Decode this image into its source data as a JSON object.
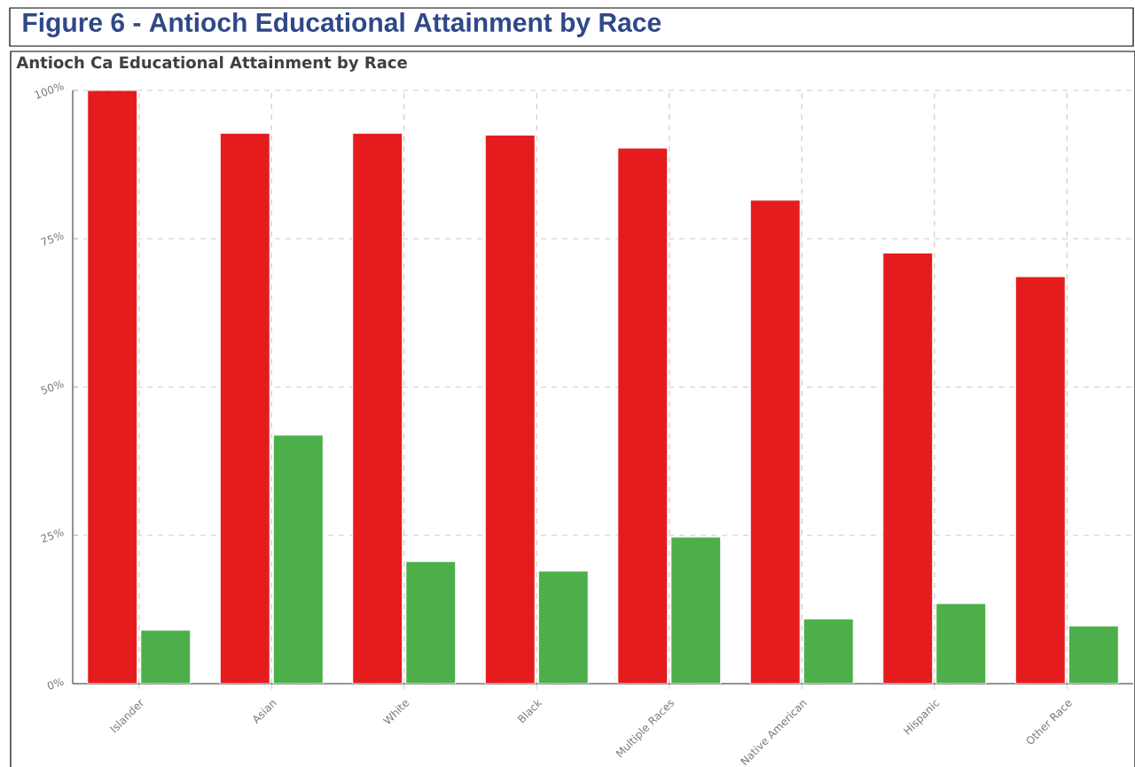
{
  "chart_data": {
    "type": "bar",
    "title": "Figure 6 - Antioch Educational Attainment by Race",
    "subtitle": "Antioch Ca Educational Attainment by Race",
    "categories": [
      "Islander",
      "Asian",
      "White",
      "Black",
      "Multiple Races",
      "Native American",
      "Hispanic",
      "Other Race"
    ],
    "series": [
      {
        "color": "#e41c1e",
        "values": [
          100,
          92.8,
          92.8,
          92.5,
          90.3,
          81.5,
          72.6,
          68.6
        ]
      },
      {
        "color": "#4daf4a",
        "values": [
          9.0,
          41.9,
          20.6,
          19.0,
          24.7,
          10.9,
          13.5,
          9.7
        ]
      }
    ],
    "ylim": [
      0,
      100
    ],
    "yticks": [
      {
        "value": 0,
        "label": "0%"
      },
      {
        "value": 25,
        "label": "25%"
      },
      {
        "value": 50,
        "label": "50%"
      },
      {
        "value": 75,
        "label": "75%"
      },
      {
        "value": 100,
        "label": "100%"
      }
    ],
    "grid": true
  }
}
